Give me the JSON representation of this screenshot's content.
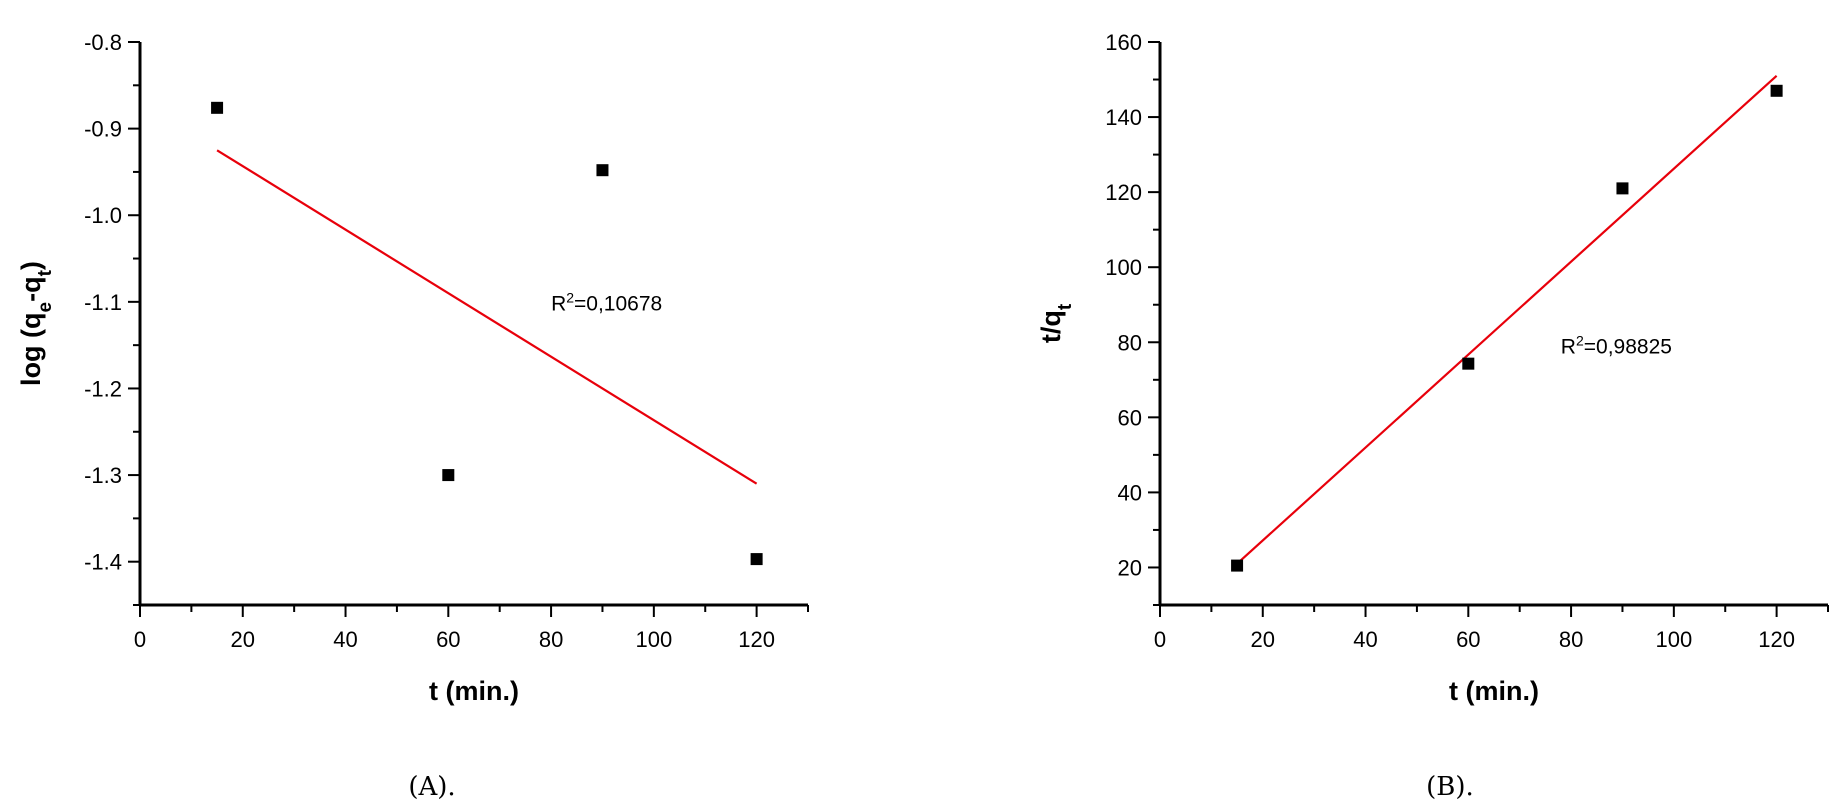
{
  "chart_data": [
    {
      "type": "scatter",
      "caption": "(A).",
      "xlabel": "t (min.)",
      "ylabel": "log (qe-qt)",
      "ylabel_parts": [
        {
          "text": "log (q",
          "sub": false
        },
        {
          "text": "e",
          "sub": true
        },
        {
          "text": "-q",
          "sub": false
        },
        {
          "text": "t",
          "sub": true
        },
        {
          "text": ")",
          "sub": false
        }
      ],
      "xlim": [
        0,
        130
      ],
      "ylim": [
        -1.45,
        -0.8
      ],
      "x_ticks": [
        0,
        20,
        40,
        60,
        80,
        100,
        120
      ],
      "x_tick_labels": [
        "0",
        "20",
        "40",
        "60",
        "80",
        "100",
        "120"
      ],
      "x_minor_step": 10,
      "y_ticks": [
        -0.8,
        -0.9,
        -1.0,
        -1.1,
        -1.2,
        -1.3,
        -1.4
      ],
      "y_tick_labels": [
        "-0.8",
        "-0.9",
        "-1.0",
        "-1.1",
        "-1.2",
        "-1.3",
        "-1.4"
      ],
      "y_minor_step": 0.05,
      "series": [
        {
          "points": [
            {
              "x": 15,
              "y": -0.876
            },
            {
              "x": 60,
              "y": -1.3
            },
            {
              "x": 90,
              "y": -0.948
            },
            {
              "x": 120,
              "y": -1.397
            }
          ],
          "marker": "square",
          "color": "#000000"
        }
      ],
      "fit_line": {
        "x": [
          15,
          120
        ],
        "y": [
          -0.925,
          -1.31
        ],
        "color": "#e8000b"
      },
      "annotation": {
        "x": 80,
        "y": -1.11,
        "prefix": "R",
        "sup": "2",
        "text": "=0,10678"
      }
    },
    {
      "type": "scatter",
      "caption": "(B).",
      "xlabel": "t (min.)",
      "ylabel": "t/qt",
      "ylabel_parts": [
        {
          "text": "t/q",
          "sub": false
        },
        {
          "text": "t",
          "sub": true
        }
      ],
      "xlim": [
        0,
        130
      ],
      "ylim": [
        10,
        160
      ],
      "x_ticks": [
        0,
        20,
        40,
        60,
        80,
        100,
        120
      ],
      "x_tick_labels": [
        "0",
        "20",
        "40",
        "60",
        "80",
        "100",
        "120"
      ],
      "x_minor_step": 10,
      "y_ticks": [
        20,
        40,
        60,
        80,
        100,
        120,
        140,
        160
      ],
      "y_tick_labels": [
        "20",
        "40",
        "60",
        "80",
        "100",
        "120",
        "140",
        "160"
      ],
      "y_minor_step": 10,
      "series": [
        {
          "points": [
            {
              "x": 15,
              "y": 20.5
            },
            {
              "x": 60,
              "y": 74.3
            },
            {
              "x": 90,
              "y": 121
            },
            {
              "x": 120,
              "y": 147
            }
          ],
          "marker": "square",
          "color": "#000000"
        }
      ],
      "fit_line": {
        "x": [
          15,
          120
        ],
        "y": [
          21,
          151
        ],
        "color": "#e8000b"
      },
      "annotation": {
        "x": 78,
        "y": 77,
        "prefix": "R",
        "sup": "2",
        "text": "=0,98825"
      }
    }
  ]
}
